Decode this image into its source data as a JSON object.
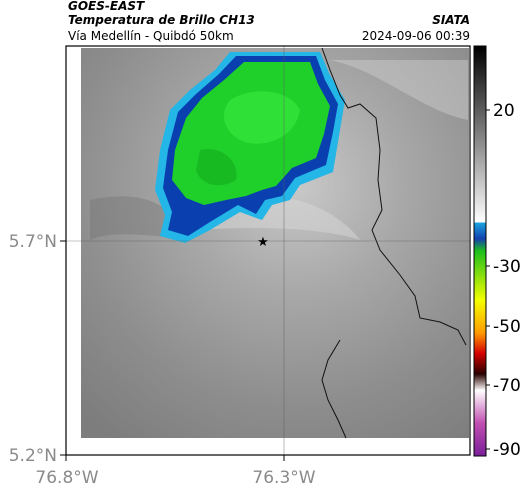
{
  "header": {
    "satellite": "GOES-EAST",
    "product": "Temperatura de Brillo CH13",
    "route": "Vía Medellín - Quibdó 50km",
    "org": "SIATA",
    "datetime": "2024-09-06 00:39"
  },
  "map": {
    "y_ticks": [
      "5.7°N",
      "5.2°N"
    ],
    "x_ticks": [
      "76.8°W",
      "76.3°W"
    ],
    "marker": "star"
  },
  "colorbar": {
    "ticks": [
      "20",
      "-30",
      "-50",
      "-70",
      "-90"
    ]
  },
  "colors": {
    "cold_cloud_green": "#22cc22",
    "cloud_blue": "#0a3fb0",
    "cloud_cyan": "#23b6e6",
    "background_gray": "#8c8c8c"
  }
}
